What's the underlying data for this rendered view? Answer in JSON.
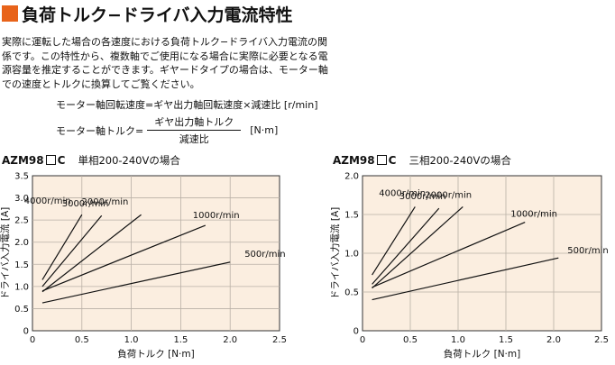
{
  "title": "負荷トルク−ドライバ入力電流特性",
  "accent_color": "#e8631a",
  "intro_text": "実際に運転した場合の各速度における負荷トルク−ドライバ入力電流の関係です。この特性から、複数軸でご使用になる場合に実際に必要となる電源容量を推定することができます。ギヤードタイプの場合は、モーター軸での速度とトルクに換算してご覧ください。",
  "formula1": "モーター軸回転速度=ギヤ出力軸回転速度×減速比 [r/min]",
  "formula2": {
    "lhs": "モーター軸トルク=",
    "numerator": "ギヤ出力軸トルク",
    "denominator": "減速比",
    "unit": "[N·m]"
  },
  "chart_data": [
    {
      "type": "line",
      "model": "AZM98",
      "model_suffix": "C",
      "subtitle": "単相200-240Vの場合",
      "xlabel": "負荷トルク [N·m]",
      "ylabel": "ドライバ入力電流 [A]",
      "xlim": [
        0,
        2.5
      ],
      "ylim": [
        0,
        3.5
      ],
      "xticks": [
        0,
        0.5,
        1.0,
        1.5,
        2.0,
        2.5
      ],
      "yticks": [
        0,
        0.5,
        1.0,
        1.5,
        2.0,
        2.5,
        3.0,
        3.5
      ],
      "grid": true,
      "background": "#fbeee0",
      "series": [
        {
          "name": "4000r/min",
          "x": [
            0.1,
            0.5
          ],
          "y": [
            1.15,
            2.62
          ]
        },
        {
          "name": "3000r/min",
          "x": [
            0.1,
            0.7
          ],
          "y": [
            1.0,
            2.6
          ]
        },
        {
          "name": "2000r/min",
          "x": [
            0.1,
            1.1
          ],
          "y": [
            0.88,
            2.62
          ]
        },
        {
          "name": "1000r/min",
          "x": [
            0.1,
            1.75
          ],
          "y": [
            0.9,
            2.38
          ]
        },
        {
          "name": "500r/min",
          "x": [
            0.1,
            2.0
          ],
          "y": [
            0.63,
            1.55
          ]
        }
      ]
    },
    {
      "type": "line",
      "model": "AZM98",
      "model_suffix": "C",
      "subtitle": "三相200-240Vの場合",
      "xlabel": "負荷トルク [N·m]",
      "ylabel": "ドライバ入力電流 [A]",
      "xlim": [
        0,
        2.5
      ],
      "ylim": [
        0,
        2.0
      ],
      "xticks": [
        0,
        0.5,
        1.0,
        1.5,
        2.0,
        2.5
      ],
      "yticks": [
        0,
        0.5,
        1.0,
        1.5,
        2.0
      ],
      "grid": true,
      "background": "#fbeee0",
      "series": [
        {
          "name": "4000r/min",
          "x": [
            0.1,
            0.55
          ],
          "y": [
            0.72,
            1.6
          ]
        },
        {
          "name": "3000r/min",
          "x": [
            0.1,
            0.8
          ],
          "y": [
            0.6,
            1.58
          ]
        },
        {
          "name": "2000r/min",
          "x": [
            0.1,
            1.05
          ],
          "y": [
            0.55,
            1.6
          ]
        },
        {
          "name": "1000r/min",
          "x": [
            0.1,
            1.7
          ],
          "y": [
            0.56,
            1.4
          ]
        },
        {
          "name": "500r/min",
          "x": [
            0.1,
            2.05
          ],
          "y": [
            0.4,
            0.94
          ]
        }
      ]
    }
  ]
}
